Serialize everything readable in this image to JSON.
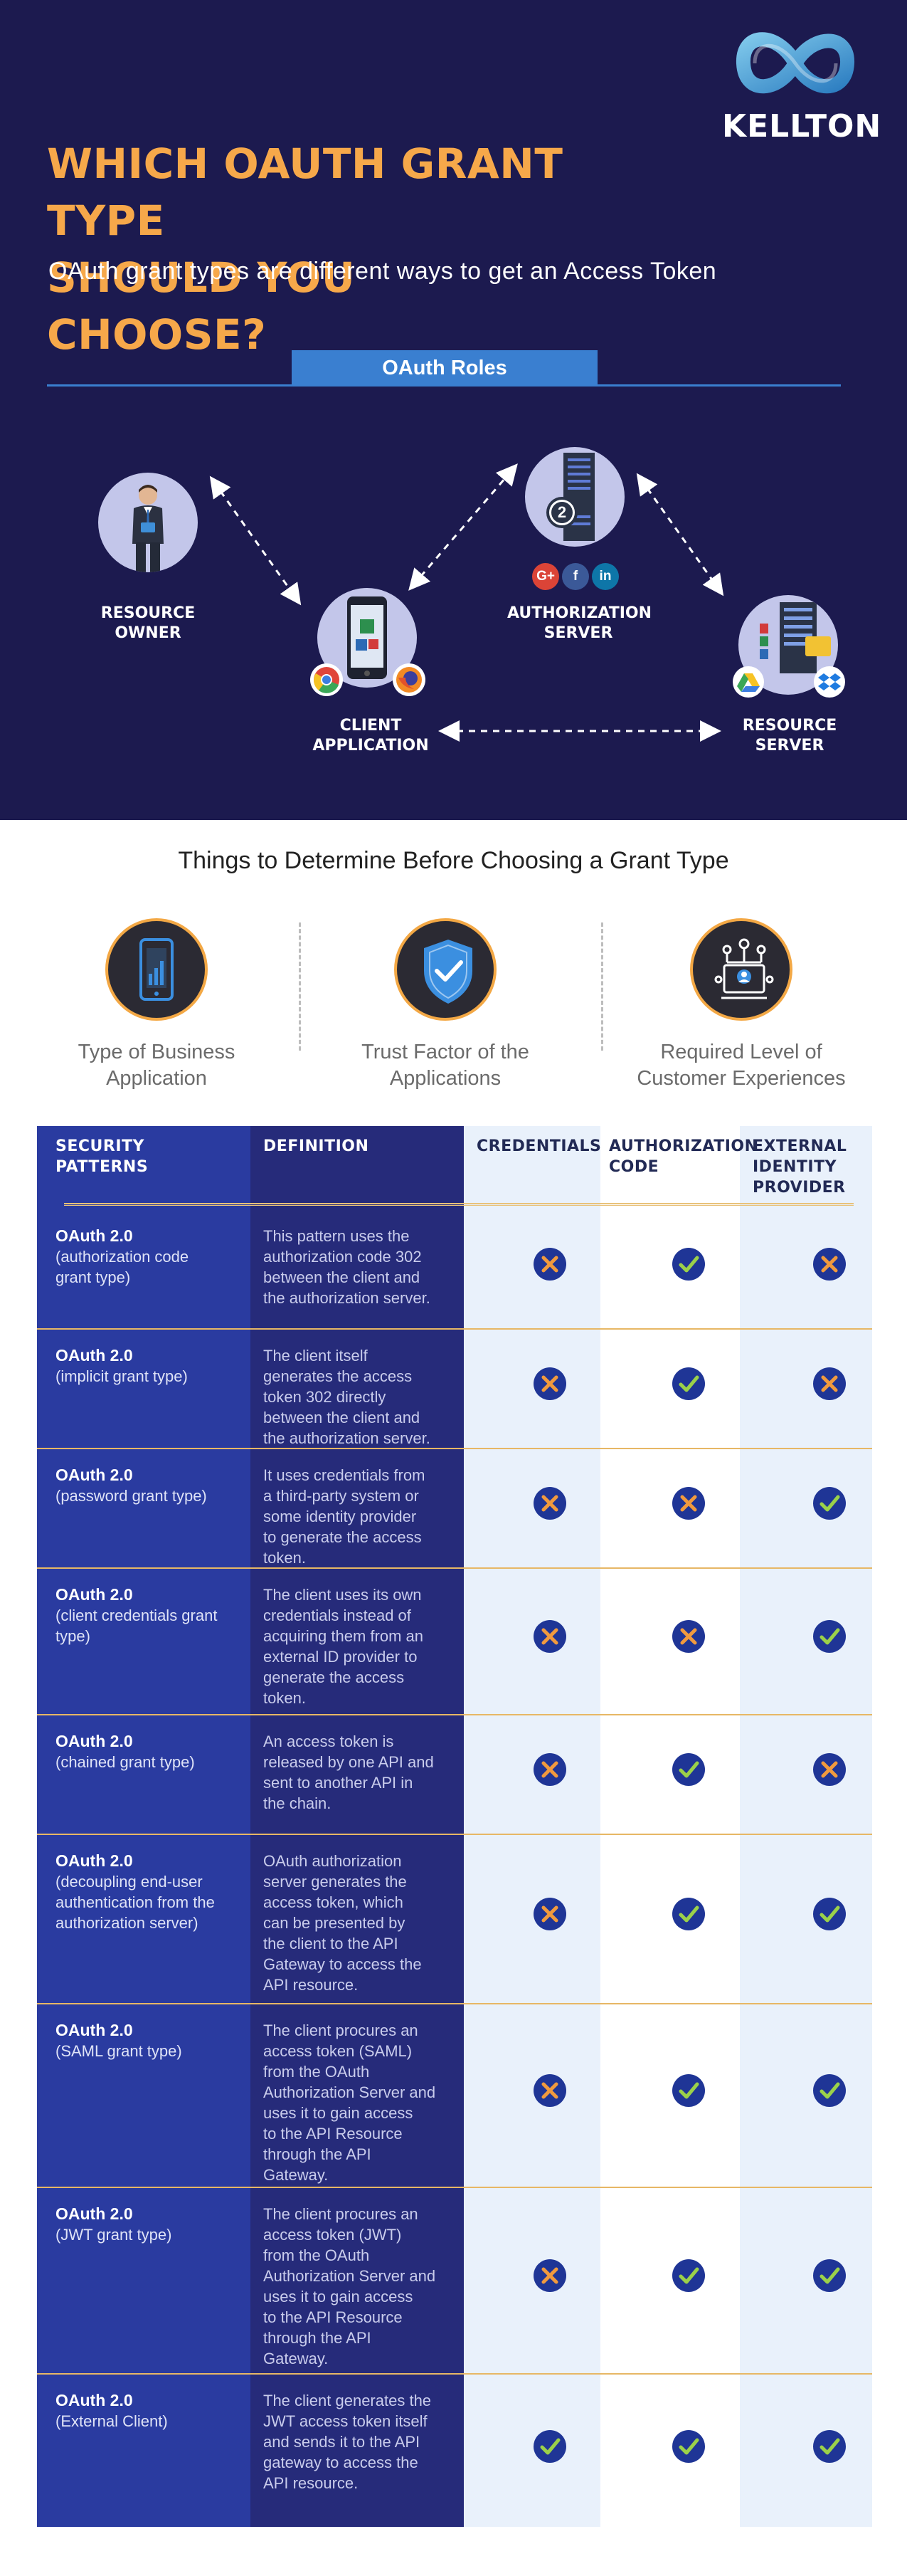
{
  "brand": {
    "name": "KELLTON"
  },
  "hero": {
    "title_line1": "WHICH OAUTH GRANT TYPE",
    "title_line2": "SHOULD YOU CHOOSE?",
    "subtitle": "OAuth grant types are different ways to get an Access Token"
  },
  "roles": {
    "heading": "OAuth Roles",
    "resource_owner": [
      "RESOURCE",
      "OWNER"
    ],
    "client_application": [
      "CLIENT",
      "APPLICATION"
    ],
    "authorization_server": [
      "AUTHORIZATION",
      "SERVER"
    ],
    "resource_server": [
      "RESOURCE",
      "SERVER"
    ],
    "server_badge": "2",
    "social": [
      "G+",
      "f",
      "in"
    ]
  },
  "determine": {
    "title": "Things to Determine Before Choosing a Grant Type",
    "factors": [
      {
        "line1": "Type of Business",
        "line2": "Application",
        "icon": "tablet-chart-icon"
      },
      {
        "line1": "Trust Factor of the",
        "line2": "Applications",
        "icon": "shield-check-icon"
      },
      {
        "line1": "Required Level of",
        "line2": "Customer Experiences",
        "icon": "network-user-icon"
      }
    ]
  },
  "table": {
    "headers": {
      "security_patterns": [
        "SECURITY",
        "PATTERNS"
      ],
      "definition": [
        "DEFINITION"
      ],
      "credentials": [
        "CREDENTIALS"
      ],
      "authorization_code": [
        "AUTHORIZATION",
        "CODE"
      ],
      "external_idp": [
        "EXTERNAL",
        "IDENTITY",
        "PROVIDER"
      ]
    },
    "rows": [
      {
        "name": "OAuth 2.0",
        "type": [
          "(authorization code",
          "grant type)"
        ],
        "definition": [
          "This pattern uses the",
          "authorization code 302",
          "between the client and",
          "the authorization server."
        ],
        "credentials": false,
        "authorization_code": true,
        "external_idp": false
      },
      {
        "name": "OAuth 2.0",
        "type": [
          "(implicit grant type)"
        ],
        "definition": [
          "The client itself",
          "generates the access",
          "token 302 directly",
          "between the client and",
          "the authorization server."
        ],
        "credentials": false,
        "authorization_code": true,
        "external_idp": false
      },
      {
        "name": "OAuth 2.0",
        "type": [
          "(password grant type)"
        ],
        "definition": [
          "It uses credentials from",
          "a third-party system or",
          "some identity provider",
          "to generate the access",
          "token."
        ],
        "credentials": false,
        "authorization_code": false,
        "external_idp": true
      },
      {
        "name": "OAuth 2.0",
        "type": [
          "(client credentials grant",
          "type)"
        ],
        "definition": [
          "The client uses its own",
          "credentials instead of",
          "acquiring them from an",
          "external ID provider to",
          "generate the access",
          "token."
        ],
        "credentials": false,
        "authorization_code": false,
        "external_idp": true
      },
      {
        "name": "OAuth 2.0",
        "type": [
          "(chained grant type)"
        ],
        "definition": [
          "An access token is",
          "released by one API and",
          "sent to another API in",
          "the chain."
        ],
        "credentials": false,
        "authorization_code": true,
        "external_idp": false
      },
      {
        "name": "OAuth 2.0",
        "type": [
          "(decoupling end-user",
          "authentication from the",
          "authorization server)"
        ],
        "definition": [
          "OAuth authorization",
          "server generates the",
          "access token, which",
          "can be presented by",
          "the client to the API",
          "Gateway to access the",
          "API resource."
        ],
        "credentials": false,
        "authorization_code": true,
        "external_idp": true
      },
      {
        "name": "OAuth 2.0",
        "type": [
          "(SAML grant type)"
        ],
        "definition": [
          "The client procures an",
          "access token (SAML)",
          "from the OAuth",
          "Authorization Server and",
          "uses it to gain access",
          "to the API Resource",
          "through the API",
          "Gateway."
        ],
        "credentials": false,
        "authorization_code": true,
        "external_idp": true
      },
      {
        "name": "OAuth 2.0",
        "type": [
          "(JWT grant type)"
        ],
        "definition": [
          "The client procures an",
          "access token (JWT)",
          "from the OAuth",
          "Authorization Server and",
          "uses it to gain access",
          "to the API Resource",
          "through the API",
          "Gateway."
        ],
        "credentials": false,
        "authorization_code": true,
        "external_idp": true
      },
      {
        "name": "OAuth 2.0",
        "type": [
          "(External Client)"
        ],
        "definition": [
          "The client generates the",
          "JWT access token itself",
          "and sends it to the API",
          "gateway to access the",
          "API resource."
        ],
        "credentials": true,
        "authorization_code": true,
        "external_idp": true
      }
    ]
  },
  "colors": {
    "hero_bg": "#1c1a4f",
    "accent_orange": "#f6a84a",
    "accent_blue": "#3a7fd0",
    "table_pattern_col": "#2a3ba0",
    "table_definition_col": "#262b7a",
    "table_light_col": "#e9f1fb",
    "check_green": "#9bd14a",
    "cross_orange": "#f19a3e"
  }
}
